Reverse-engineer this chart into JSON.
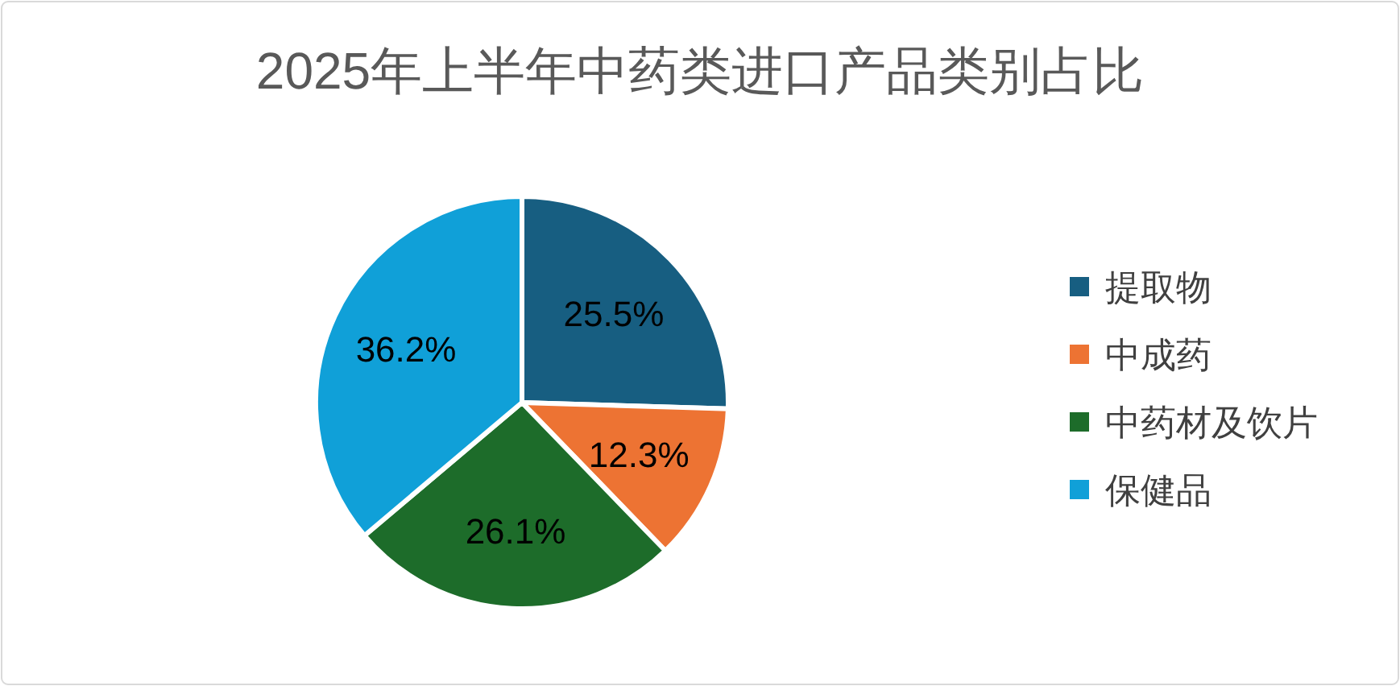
{
  "chart_data": {
    "type": "pie",
    "title": "2025年上半年中药类进口产品类别占比",
    "categories": [
      "提取物",
      "中成药",
      "中药材及饮片",
      "保健品"
    ],
    "values": [
      25.5,
      12.3,
      26.1,
      36.2
    ],
    "colors": [
      "#175e81",
      "#ed7333",
      "#1d6c2a",
      "#10a0d8"
    ],
    "value_labels": [
      "25.5%",
      "12.3%",
      "26.1%",
      "36.2%"
    ],
    "legend": "right"
  }
}
